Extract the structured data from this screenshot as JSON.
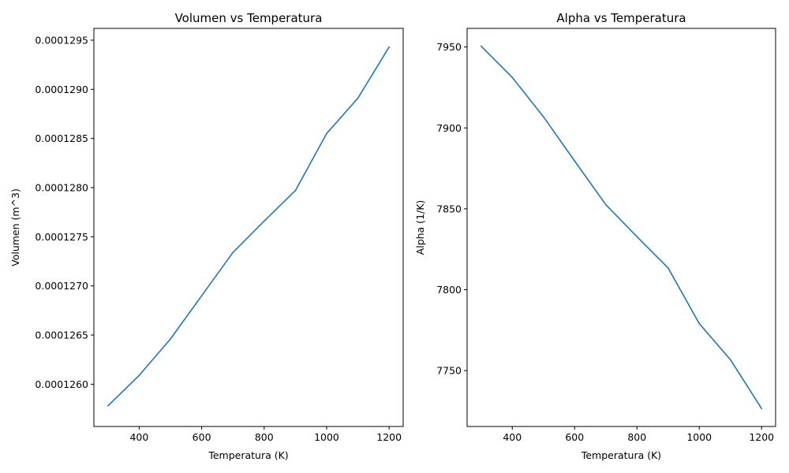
{
  "chart_data": [
    {
      "type": "line",
      "title": "Volumen vs Temperatura",
      "xlabel": "Temperatura (K)",
      "ylabel": "Volumen (m^3)",
      "xlim": [
        255,
        1245
      ],
      "ylim": [
        0.00012557,
        0.00012962
      ],
      "xticks": [
        400,
        600,
        800,
        1000,
        1200
      ],
      "xtick_labels": [
        "400",
        "600",
        "800",
        "1000",
        "1200"
      ],
      "yticks": [
        0.000126,
        0.0001265,
        0.000127,
        0.0001275,
        0.000128,
        0.0001285,
        0.000129,
        0.0001295
      ],
      "ytick_labels": [
        "0.0001260",
        "0.0001265",
        "0.0001270",
        "0.0001275",
        "0.0001280",
        "0.0001285",
        "0.0001290",
        "0.0001295"
      ],
      "grid": false,
      "series": [
        {
          "color": "#1f77b4",
          "x": [
            300,
            400,
            500,
            600,
            700,
            800,
            900,
            1000,
            1100,
            1200
          ],
          "y": [
            0.00012578,
            0.00012609,
            0.00012646,
            0.0001269,
            0.00012734,
            0.00012766,
            0.00012797,
            0.00012855,
            0.00012891,
            0.00012943
          ]
        }
      ]
    },
    {
      "type": "line",
      "title": "Alpha vs Temperatura",
      "xlabel": "Temperatura (K)",
      "ylabel": "Alpha (1/K)",
      "xlim": [
        255,
        1245
      ],
      "ylim": [
        7715.5,
        7961.5
      ],
      "xticks": [
        400,
        600,
        800,
        1000,
        1200
      ],
      "xtick_labels": [
        "400",
        "600",
        "800",
        "1000",
        "1200"
      ],
      "yticks": [
        7750,
        7800,
        7850,
        7900,
        7950
      ],
      "ytick_labels": [
        "7750",
        "7800",
        "7850",
        "7900",
        "7950"
      ],
      "grid": false,
      "series": [
        {
          "color": "#1f77b4",
          "x": [
            300,
            400,
            500,
            600,
            700,
            800,
            900,
            1000,
            1100,
            1200
          ],
          "y": [
            7950.5,
            7931.2,
            7906.9,
            7879.6,
            7852.6,
            7832.8,
            7813.5,
            7779.1,
            7756.8,
            7726.6
          ]
        }
      ]
    }
  ]
}
